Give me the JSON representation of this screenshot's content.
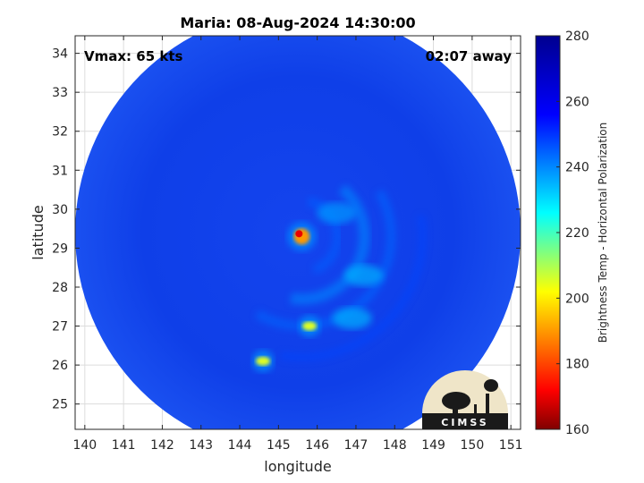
{
  "chart_data": {
    "type": "heatmap",
    "title": "Maria: 08-Aug-2024 14:30:00",
    "xlabel": "longitude",
    "ylabel": "latitude",
    "xlim": [
      139.75,
      151.25
    ],
    "ylim": [
      24.35,
      34.45
    ],
    "xticks": [
      140,
      141,
      142,
      143,
      144,
      145,
      146,
      147,
      148,
      149,
      150,
      151
    ],
    "yticks": [
      25,
      26,
      27,
      28,
      29,
      30,
      31,
      32,
      33,
      34
    ],
    "grid": true,
    "annotations": {
      "vmax": "Vmax: 65 kts",
      "time_offset": "02:07 away"
    },
    "swath": {
      "center_lon": 145.5,
      "center_lat": 29.4,
      "radius_deg_lon": 5.75
    },
    "storm_center": {
      "lon": 145.6,
      "lat": 29.3
    },
    "features": [
      {
        "name": "eyewall",
        "lon": 145.6,
        "lat": 29.3,
        "temp": 190
      },
      {
        "name": "convective-cell",
        "lon": 145.8,
        "lat": 27.0,
        "temp": 205
      },
      {
        "name": "convective-cell",
        "lon": 144.6,
        "lat": 26.1,
        "temp": 205
      },
      {
        "name": "rainband",
        "lon": 147.2,
        "lat": 28.3,
        "temp": 235
      },
      {
        "name": "rainband",
        "lon": 146.5,
        "lat": 29.9,
        "temp": 238
      },
      {
        "name": "rainband",
        "lon": 146.9,
        "lat": 27.2,
        "temp": 235
      }
    ],
    "colorbar": {
      "label": "Brightness Temp - Horizontal Polarization",
      "range": [
        160,
        280
      ],
      "ticks": [
        160,
        180,
        200,
        220,
        240,
        260,
        280
      ],
      "colormap": "jet"
    },
    "logo": {
      "text": "CIMSS"
    }
  }
}
